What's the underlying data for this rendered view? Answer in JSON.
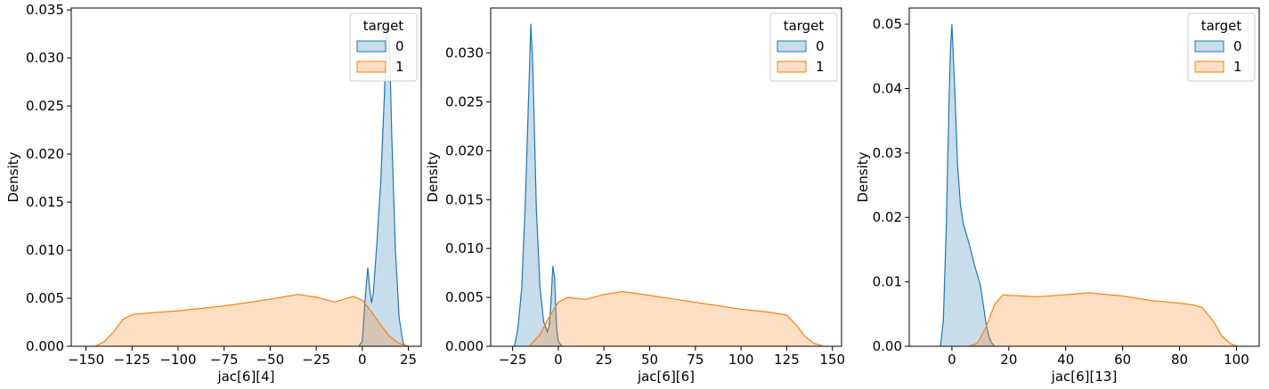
{
  "colors": {
    "series0": "#1f77b4",
    "series1": "#ff7f0e"
  },
  "chart_data": [
    {
      "type": "area",
      "xlabel": "jac[6][4]",
      "ylabel": "Density",
      "xlim": [
        -158,
        32
      ],
      "ylim": [
        0,
        0.0352
      ],
      "xticks": [
        -150,
        -125,
        -100,
        -75,
        -50,
        -25,
        0,
        25
      ],
      "xtick_labels": [
        "−150",
        "−125",
        "−100",
        "−75",
        "−50",
        "−25",
        "0",
        "25"
      ],
      "yticks": [
        0,
        0.005,
        0.01,
        0.015,
        0.02,
        0.025,
        0.03,
        0.035
      ],
      "ytick_labels": [
        "0.000",
        "0.005",
        "0.010",
        "0.015",
        "0.020",
        "0.025",
        "0.030",
        "0.035"
      ],
      "legend": {
        "title": "target",
        "placement": "top-right"
      },
      "series": [
        {
          "name": "0",
          "x": [
            -2,
            0,
            2,
            3,
            4,
            5,
            6,
            8,
            9,
            10,
            12,
            13,
            14,
            15,
            16,
            18,
            20,
            22,
            23
          ],
          "y": [
            0,
            0.0005,
            0.006,
            0.0082,
            0.006,
            0.0045,
            0.0055,
            0.011,
            0.014,
            0.017,
            0.026,
            0.032,
            0.034,
            0.03,
            0.022,
            0.01,
            0.003,
            0.0005,
            0
          ]
        },
        {
          "name": "1",
          "x": [
            -145,
            -140,
            -135,
            -130,
            -125,
            -120,
            -100,
            -75,
            -50,
            -35,
            -25,
            -15,
            -5,
            0,
            5,
            10,
            15,
            20,
            25
          ],
          "y": [
            0,
            0.0005,
            0.0015,
            0.0028,
            0.0033,
            0.0034,
            0.0037,
            0.0042,
            0.0049,
            0.0054,
            0.0051,
            0.0046,
            0.0052,
            0.0048,
            0.0036,
            0.0022,
            0.001,
            0.0003,
            0
          ]
        }
      ]
    },
    {
      "type": "area",
      "xlabel": "jac[6][6]",
      "ylabel": "Density",
      "xlim": [
        -37,
        155
      ],
      "ylim": [
        0,
        0.0346
      ],
      "xticks": [
        -25,
        0,
        25,
        50,
        75,
        100,
        125,
        150
      ],
      "xtick_labels": [
        "−25",
        "0",
        "25",
        "50",
        "75",
        "100",
        "125",
        "150"
      ],
      "yticks": [
        0,
        0.005,
        0.01,
        0.015,
        0.02,
        0.025,
        0.03
      ],
      "ytick_labels": [
        "0.000",
        "0.005",
        "0.010",
        "0.015",
        "0.020",
        "0.025",
        "0.030"
      ],
      "legend": {
        "title": "target",
        "placement": "top-right"
      },
      "series": [
        {
          "name": "0",
          "x": [
            -24,
            -22,
            -20,
            -18,
            -16,
            -15,
            -14,
            -12,
            -10,
            -8,
            -6,
            -5,
            -4,
            -3,
            -2,
            -1,
            0,
            2
          ],
          "y": [
            0,
            0.002,
            0.006,
            0.015,
            0.027,
            0.033,
            0.029,
            0.014,
            0.006,
            0.0025,
            0.0015,
            0.002,
            0.0045,
            0.0082,
            0.007,
            0.002,
            0.0005,
            0
          ]
        },
        {
          "name": "1",
          "x": [
            -16,
            -10,
            -5,
            0,
            5,
            15,
            25,
            35,
            50,
            75,
            100,
            115,
            125,
            130,
            135,
            140,
            145
          ],
          "y": [
            0,
            0.0012,
            0.003,
            0.0045,
            0.005,
            0.0048,
            0.0053,
            0.0056,
            0.0052,
            0.0045,
            0.0038,
            0.0035,
            0.0032,
            0.0022,
            0.001,
            0.0003,
            0
          ]
        }
      ]
    },
    {
      "type": "area",
      "xlabel": "jac[6][13]",
      "ylabel": "Density",
      "xlim": [
        -15,
        108
      ],
      "ylim": [
        0,
        0.0525
      ],
      "xticks": [
        0,
        20,
        40,
        60,
        80,
        100
      ],
      "xtick_labels": [
        "0",
        "20",
        "40",
        "60",
        "80",
        "100"
      ],
      "yticks": [
        0,
        0.01,
        0.02,
        0.03,
        0.04,
        0.05
      ],
      "ytick_labels": [
        "0.00",
        "0.01",
        "0.02",
        "0.03",
        "0.04",
        "0.05"
      ],
      "legend": {
        "title": "target",
        "placement": "top-right"
      },
      "series": [
        {
          "name": "0",
          "x": [
            -4,
            -3,
            -2,
            -1,
            -0.5,
            0,
            1,
            2,
            3,
            4,
            6,
            8,
            10,
            11,
            12,
            13,
            14,
            15
          ],
          "y": [
            0,
            0.004,
            0.018,
            0.038,
            0.046,
            0.05,
            0.04,
            0.028,
            0.022,
            0.019,
            0.016,
            0.0125,
            0.0095,
            0.0065,
            0.0035,
            0.0015,
            0.0005,
            0
          ]
        },
        {
          "name": "1",
          "x": [
            6,
            9,
            12,
            15,
            18,
            20,
            30,
            40,
            48,
            60,
            70,
            80,
            85,
            88,
            92,
            95,
            98,
            100
          ],
          "y": [
            0,
            0.0005,
            0.003,
            0.0065,
            0.008,
            0.0079,
            0.0077,
            0.008,
            0.0083,
            0.0078,
            0.0071,
            0.0067,
            0.0064,
            0.006,
            0.0038,
            0.0015,
            0.0004,
            0
          ]
        }
      ]
    }
  ]
}
